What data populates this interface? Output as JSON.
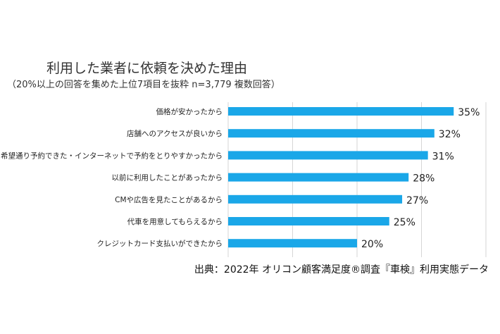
{
  "chart_data": {
    "type": "bar",
    "orientation": "horizontal",
    "title": "利用した業者に依頼を決めた理由",
    "subtitle": "（20%以上の回答を集めた上位7項目を抜粋 n=3,779 複数回答）",
    "categories": [
      "価格が安かったから",
      "店舗へのアクセスが良いから",
      "希望通り予約できた・インターネットで予約をとりやすかったから",
      "以前に利用したことがあったから",
      "CMや広告を見たことがあるから",
      "代車を用意してもらえるから",
      "クレジットカード支払いができたから"
    ],
    "values": [
      35,
      32,
      31,
      28,
      27,
      25,
      20
    ],
    "value_labels": [
      "35%",
      "32%",
      "31%",
      "28%",
      "27%",
      "25%",
      "20%"
    ],
    "xlim": [
      0,
      40
    ],
    "grid": true,
    "bar_color": "#1aa7e8",
    "source": "出典：2022年 オリコン顧客満足度®調査『車検』利用実態データ"
  }
}
